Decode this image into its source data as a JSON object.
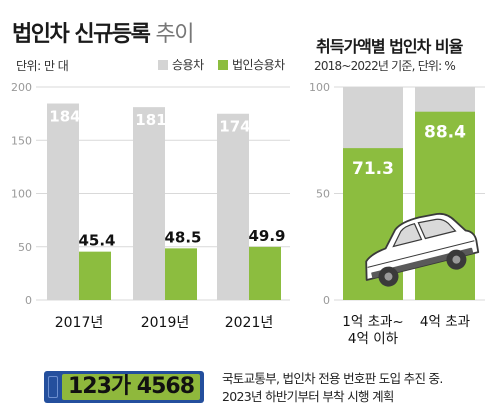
{
  "title": {
    "main": "법인차 신규등록",
    "suffix": "추이"
  },
  "unit_left": "단위: 만 대",
  "legend": [
    {
      "name": "승용차",
      "color": "#d4d4d4"
    },
    {
      "name": "법인승용차",
      "color": "#8cbd3f"
    }
  ],
  "right_title": "취득가액별 법인차 비율",
  "right_unit": "2018~2022년 기준, 단위: %",
  "chart_data": [
    {
      "type": "bar",
      "categories": [
        "2017년",
        "2019년",
        "2021년"
      ],
      "series": [
        {
          "name": "승용차",
          "values": [
            184.5,
            181.1,
            174.9
          ],
          "color": "#d4d4d4"
        },
        {
          "name": "법인승용차",
          "values": [
            45.4,
            48.5,
            49.9
          ],
          "color": "#8cbd3f"
        }
      ],
      "ylim": [
        0,
        200
      ],
      "yticks": [
        "0",
        "50",
        "100",
        "150",
        "200"
      ],
      "grid": true
    },
    {
      "type": "bar",
      "stacked": true,
      "categories": [
        [
          "1억 초과~",
          "4억 이하"
        ],
        [
          "4억 초과"
        ]
      ],
      "values": [
        71.3,
        88.4
      ],
      "ylim": [
        0,
        100
      ],
      "yticks": [
        "0",
        "50",
        "100"
      ],
      "bar_color": "#8cbd3f",
      "background_color": "#d4d4d4"
    }
  ],
  "plate_number": "123가 4568",
  "note_lines": [
    "국토교통부, 법인차 전용 번호판 도입 추진 중.",
    "2023년 하반기부터 부착 시행 계획"
  ]
}
